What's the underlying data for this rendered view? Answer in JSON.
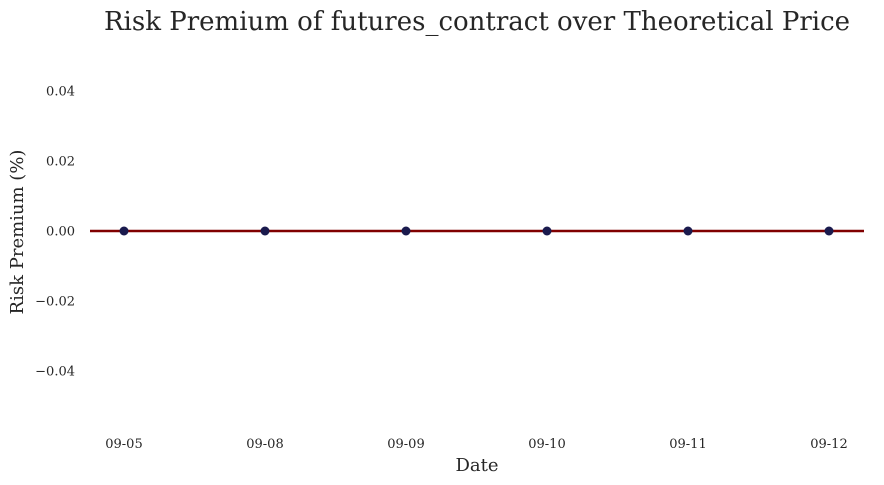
{
  "chart_data": {
    "type": "line",
    "title": "Risk Premium of futures_contract over Theoretical Price",
    "xlabel": "Date",
    "ylabel": "Risk Premium (%)",
    "categories": [
      "09-05",
      "09-08",
      "09-09",
      "09-10",
      "09-11",
      "09-12"
    ],
    "series": [
      {
        "values": [
          0,
          0,
          0,
          0,
          0,
          0
        ],
        "marker_color": "#1a1a4d"
      }
    ],
    "reference_line": {
      "y": 0,
      "color": "#800000"
    },
    "ylim": [
      -0.055,
      0.055
    ],
    "yticks": [
      -0.04,
      -0.02,
      0.0,
      0.02,
      0.04
    ],
    "ytick_labels": [
      "−0.04",
      "−0.02",
      "0.00",
      "0.02",
      "0.04"
    ],
    "grid": false,
    "background": "#ffffff"
  }
}
